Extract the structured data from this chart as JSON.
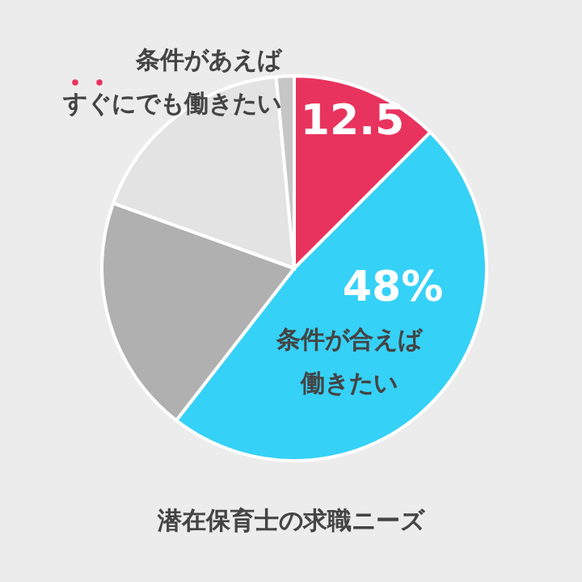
{
  "chart_data": {
    "type": "pie",
    "title": "潜在保育士の求職ニーズ",
    "categories": [
      "条件があえばすぐにでも働きたい",
      "条件が合えば働きたい",
      null,
      null,
      null
    ],
    "values": [
      12.5,
      48,
      20,
      18,
      1.5
    ],
    "colors": [
      "#e8335e",
      "#36d1f7",
      "#b0b0b0",
      "#e3e3e3",
      "#c6c6c6"
    ],
    "value_labels": [
      "12.5",
      "48%",
      null,
      null,
      null
    ]
  }
}
